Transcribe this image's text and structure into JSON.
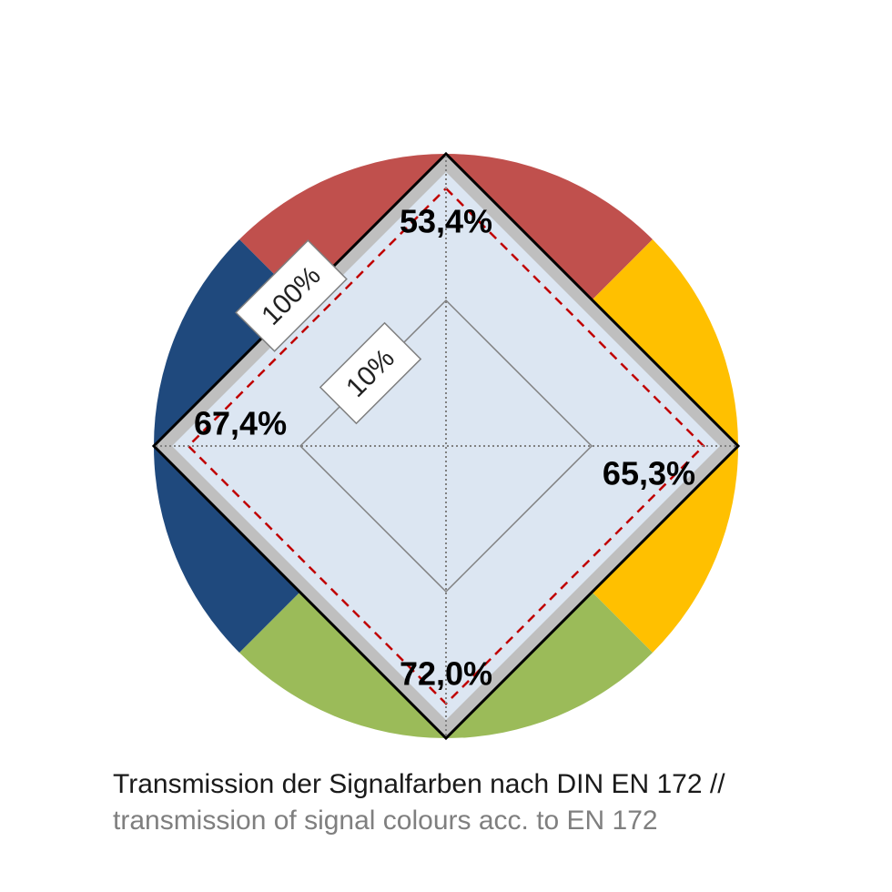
{
  "chart_data": {
    "type": "radar",
    "axes": [
      "top",
      "right",
      "bottom",
      "left"
    ],
    "series": [
      {
        "values": [
          53.4,
          65.3,
          72.0,
          67.4
        ],
        "labels": [
          "53,4%",
          "65,3%",
          "72,0%",
          "67,4%"
        ]
      }
    ],
    "outer_limit": 100,
    "inner_limit": 10,
    "scale_labels": [
      "100%",
      "10%"
    ],
    "segment_colors": {
      "top": "#C0504D",
      "right": "#FFC000",
      "bottom": "#9BBB59",
      "left": "#1F497D"
    },
    "inner_fill": "#DCE6F2",
    "band_color": "#BFBFBF",
    "outline_color": "#000000",
    "dashed_line_color": "#C00000"
  },
  "caption": {
    "line1": "Transmission der Signalfarben nach DIN EN 172 //",
    "line2": "transmission of signal colours acc. to EN 172"
  }
}
